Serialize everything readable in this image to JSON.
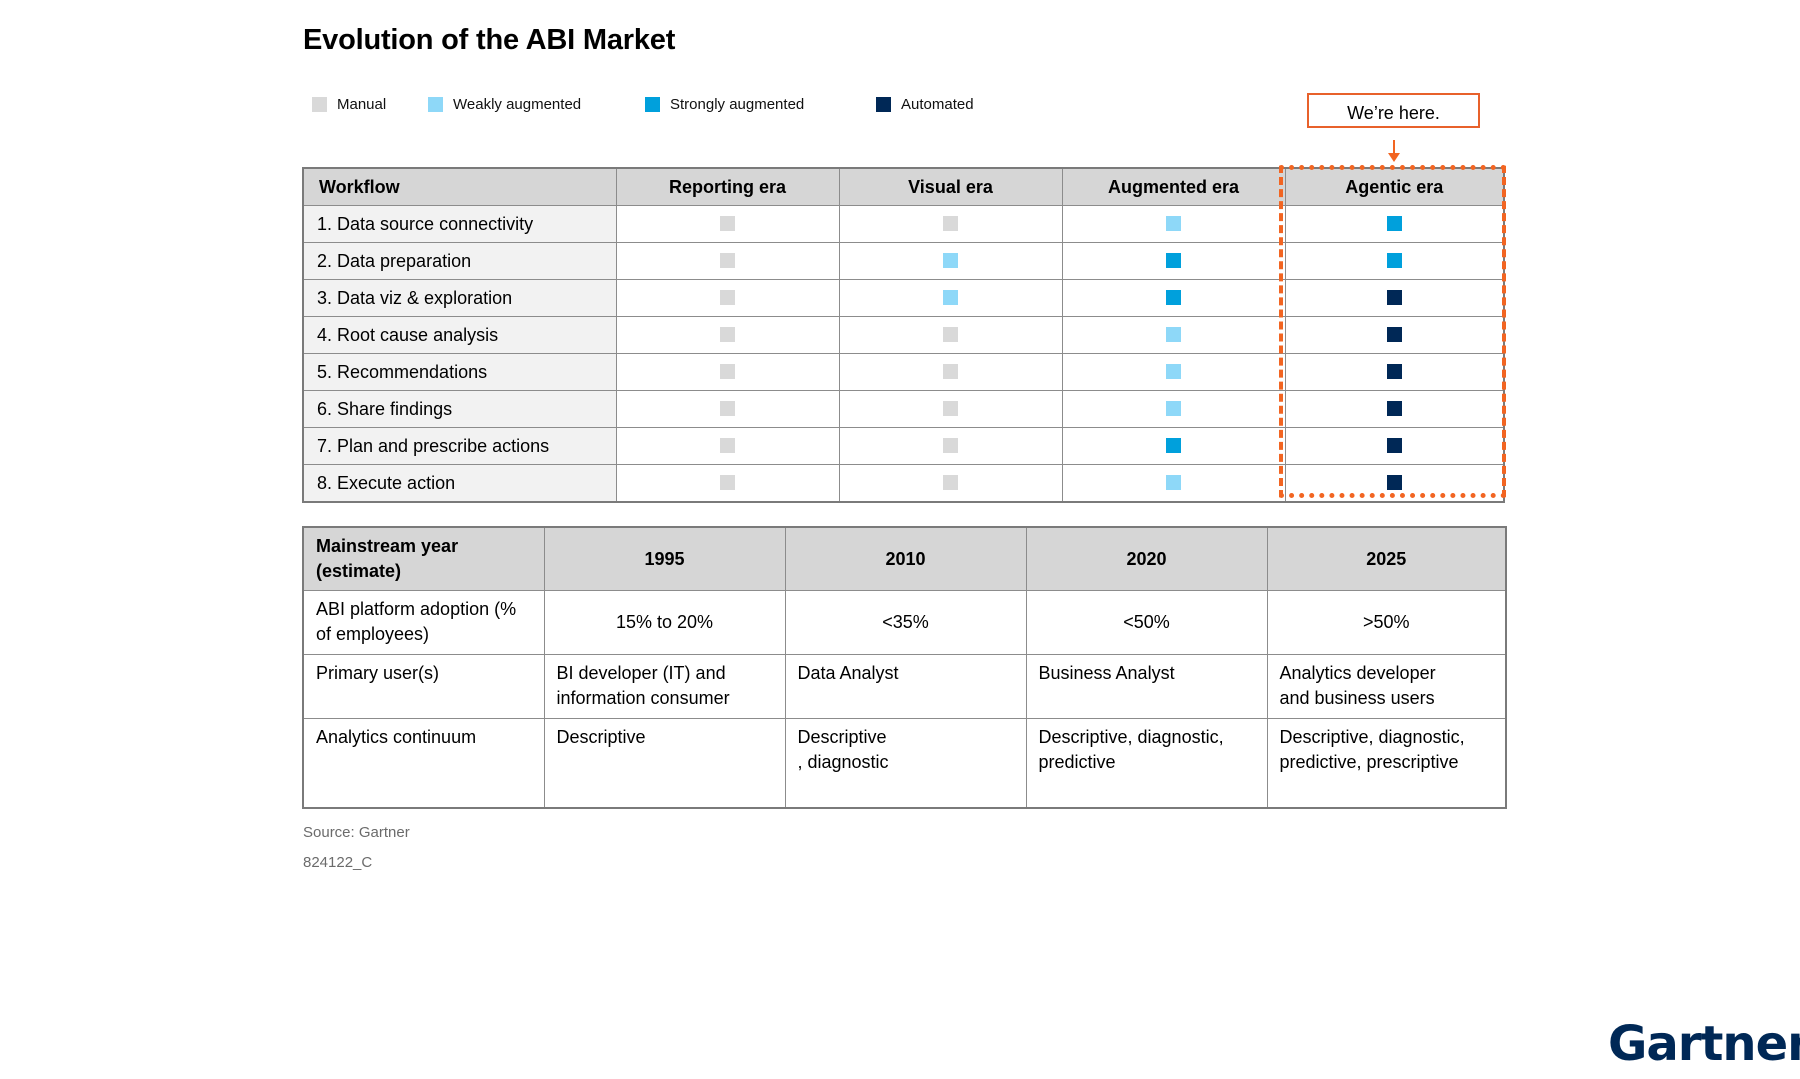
{
  "title": "Evolution of the ABI Market",
  "legend": [
    {
      "label": "Manual",
      "color": "#d9d9d9"
    },
    {
      "label": "Weakly augmented",
      "color": "#8ed8f8"
    },
    {
      "label": "Strongly augmented",
      "color": "#00a0dc"
    },
    {
      "label": "Automated",
      "color": "#002856"
    }
  ],
  "callout": "We’re here.",
  "chart_data": {
    "type": "table",
    "title": "Evolution of the ABI Market",
    "workflow_table": {
      "header": [
        "Workflow",
        "Reporting era",
        "Visual era",
        "Augmented era",
        "Agentic era"
      ],
      "rows": [
        {
          "label": " 1. Data source connectivity",
          "levels": [
            "Manual",
            "Manual",
            "Weakly augmented",
            "Strongly augmented"
          ]
        },
        {
          "label": "2. Data preparation",
          "levels": [
            "Manual",
            "Weakly augmented",
            "Strongly augmented",
            "Strongly augmented"
          ]
        },
        {
          "label": "3. Data viz & exploration",
          "levels": [
            "Manual",
            "Weakly augmented",
            "Strongly augmented",
            "Automated"
          ]
        },
        {
          "label": "4. Root cause analysis",
          "levels": [
            "Manual",
            "Manual",
            "Weakly augmented",
            "Automated"
          ]
        },
        {
          "label": "5. Recommendations",
          "levels": [
            "Manual",
            "Manual",
            "Weakly augmented",
            "Automated"
          ]
        },
        {
          "label": "6. Share findings",
          "levels": [
            "Manual",
            "Manual",
            "Weakly augmented",
            "Automated"
          ]
        },
        {
          "label": " 7. Plan and prescribe actions",
          "levels": [
            "Manual",
            "Manual",
            "Strongly augmented",
            "Automated"
          ]
        },
        {
          "label": "8. Execute action",
          "levels": [
            "Manual",
            "Manual",
            "Weakly augmented",
            "Automated"
          ]
        }
      ]
    },
    "mainstream_table": {
      "header": [
        "Mainstream year (estimate)",
        "1995",
        "2010",
        "2020",
        "2025"
      ],
      "rows": [
        {
          "label": "ABI platform adoption (% of employees)",
          "values": [
            "15% to 20%",
            "<35%",
            "<50%",
            ">50%"
          ]
        },
        {
          "label": "Primary user(s)",
          "values": [
            "BI developer (IT) and\ninformation consumer",
            "Data Analyst",
            "Business Analyst",
            "Analytics developer\nand business users"
          ]
        },
        {
          "label": "Analytics continuum",
          "values": [
            "Descriptive",
            "Descriptive\n, diagnostic",
            "Descriptive, diagnostic,\npredictive",
            "Descriptive, diagnostic,\npredictive, prescriptive"
          ]
        }
      ]
    }
  },
  "footer": {
    "source": "Source: Gartner",
    "code": "824122_C"
  },
  "brand": "Gartner"
}
